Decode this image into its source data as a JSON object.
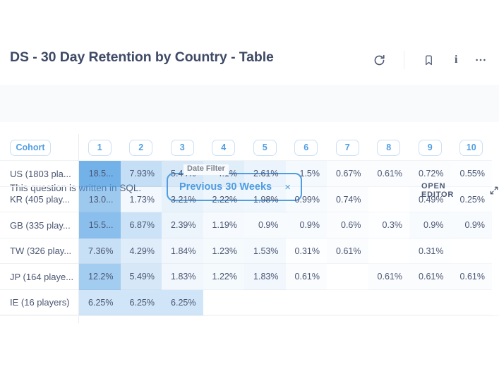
{
  "colors": {
    "accent": "#509EE3",
    "heatmap_base_rgb": "80,158,227",
    "text": "#4C5773"
  },
  "header": {
    "title": "DS - 30 Day Retention by Country - Table",
    "info_glyph": "i"
  },
  "filter_bar": {
    "sql_note": "This question is written in SQL.",
    "date_filter": {
      "label": "Date Filter",
      "value": "Previous 30 Weeks",
      "close_glyph": "×"
    },
    "open_editor": "OPEN EDITOR"
  },
  "table": {
    "cohort_header": "Cohort",
    "columns": [
      "1",
      "2",
      "3",
      "4",
      "5",
      "6",
      "7",
      "8",
      "9",
      "10"
    ],
    "rows": [
      {
        "label": "US (1803 pla...",
        "cells": [
          {
            "t": "18.5...",
            "v": 18.5
          },
          {
            "t": "7.93%",
            "v": 7.93
          },
          {
            "t": "5.44%",
            "v": 5.44
          },
          {
            "t": "4.1%",
            "v": 4.1
          },
          {
            "t": "2.61%",
            "v": 2.61
          },
          {
            "t": "1.5%",
            "v": 1.5
          },
          {
            "t": "0.67%",
            "v": 0.67
          },
          {
            "t": "0.61%",
            "v": 0.61
          },
          {
            "t": "0.72%",
            "v": 0.72
          },
          {
            "t": "0.55%",
            "v": 0.55
          }
        ]
      },
      {
        "label": "KR (405 play...",
        "cells": [
          {
            "t": "13.0...",
            "v": 13.0
          },
          {
            "t": "1.73%",
            "v": 1.73
          },
          {
            "t": "3.21%",
            "v": 3.21
          },
          {
            "t": "2.22%",
            "v": 2.22
          },
          {
            "t": "1.98%",
            "v": 1.98
          },
          {
            "t": "0.99%",
            "v": 0.99
          },
          {
            "t": "0.74%",
            "v": 0.74
          },
          {
            "t": "",
            "v": null
          },
          {
            "t": "0.49%",
            "v": 0.49
          },
          {
            "t": "0.25%",
            "v": 0.25
          }
        ]
      },
      {
        "label": "GB (335 play...",
        "cells": [
          {
            "t": "15.5...",
            "v": 15.5
          },
          {
            "t": "6.87%",
            "v": 6.87
          },
          {
            "t": "2.39%",
            "v": 2.39
          },
          {
            "t": "1.19%",
            "v": 1.19
          },
          {
            "t": "0.9%",
            "v": 0.9
          },
          {
            "t": "0.9%",
            "v": 0.9
          },
          {
            "t": "0.6%",
            "v": 0.6
          },
          {
            "t": "0.3%",
            "v": 0.3
          },
          {
            "t": "0.9%",
            "v": 0.9
          },
          {
            "t": "0.9%",
            "v": 0.9
          }
        ]
      },
      {
        "label": "TW (326 play...",
        "cells": [
          {
            "t": "7.36%",
            "v": 7.36
          },
          {
            "t": "4.29%",
            "v": 4.29
          },
          {
            "t": "1.84%",
            "v": 1.84
          },
          {
            "t": "1.23%",
            "v": 1.23
          },
          {
            "t": "1.53%",
            "v": 1.53
          },
          {
            "t": "0.31%",
            "v": 0.31
          },
          {
            "t": "0.61%",
            "v": 0.61
          },
          {
            "t": "",
            "v": null
          },
          {
            "t": "0.31%",
            "v": 0.31
          },
          {
            "t": "",
            "v": null
          }
        ]
      },
      {
        "label": "JP (164 playe...",
        "cells": [
          {
            "t": "12.2%",
            "v": 12.2
          },
          {
            "t": "5.49%",
            "v": 5.49
          },
          {
            "t": "1.83%",
            "v": 1.83
          },
          {
            "t": "1.22%",
            "v": 1.22
          },
          {
            "t": "1.83%",
            "v": 1.83
          },
          {
            "t": "0.61%",
            "v": 0.61
          },
          {
            "t": "",
            "v": null
          },
          {
            "t": "0.61%",
            "v": 0.61
          },
          {
            "t": "0.61%",
            "v": 0.61
          },
          {
            "t": "0.61%",
            "v": 0.61
          }
        ]
      },
      {
        "label": "IE (16 players)",
        "cells": [
          {
            "t": "6.25%",
            "v": 6.25
          },
          {
            "t": "6.25%",
            "v": 6.25
          },
          {
            "t": "6.25%",
            "v": 6.25
          },
          {
            "t": "",
            "v": null
          },
          {
            "t": "",
            "v": null
          },
          {
            "t": "",
            "v": null
          },
          {
            "t": "",
            "v": null
          },
          {
            "t": "",
            "v": null
          },
          {
            "t": "",
            "v": null
          },
          {
            "t": "",
            "v": null
          }
        ]
      }
    ]
  }
}
